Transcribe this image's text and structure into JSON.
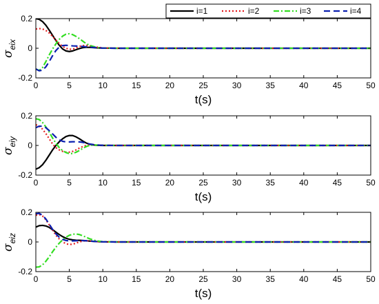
{
  "chart_data": [
    {
      "type": "line",
      "xlabel": "t(s)",
      "ylabel": {
        "symbol": "σ",
        "subscript": "eix"
      },
      "xlim": [
        0,
        50
      ],
      "ylim": [
        -0.2,
        0.2
      ],
      "xticks": [
        0,
        5,
        10,
        15,
        20,
        25,
        30,
        35,
        40,
        45,
        50
      ],
      "yticks": [
        -0.2,
        0,
        0.2
      ],
      "ytick_labels": [
        "-0.2",
        "0",
        "0.2"
      ],
      "grid": false,
      "legend_position": "top-right",
      "series": [
        {
          "name": "i=1",
          "x": [
            0,
            0.5,
            1,
            1.5,
            2,
            2.5,
            3,
            3.5,
            4,
            4.5,
            5,
            5.5,
            6,
            6.5,
            7,
            7.5,
            8,
            9,
            10,
            12,
            15,
            20,
            50
          ],
          "y": [
            0.2,
            0.195,
            0.18,
            0.155,
            0.122,
            0.087,
            0.052,
            0.02,
            -0.005,
            -0.018,
            -0.022,
            -0.018,
            -0.01,
            -0.002,
            0.004,
            0.006,
            0.006,
            0.003,
            0.001,
            0,
            0,
            0,
            0
          ]
        },
        {
          "name": "i=2",
          "x": [
            0,
            0.5,
            1,
            1.5,
            2,
            2.5,
            3,
            3.5,
            4,
            4.5,
            5,
            5.5,
            6,
            6.5,
            7,
            7.5,
            8,
            9,
            10,
            12,
            15,
            20,
            50
          ],
          "y": [
            0.13,
            0.133,
            0.13,
            0.12,
            0.103,
            0.08,
            0.055,
            0.032,
            0.012,
            0.0,
            -0.007,
            -0.006,
            0.002,
            0.012,
            0.018,
            0.02,
            0.017,
            0.008,
            0.002,
            0,
            0,
            0,
            0
          ]
        },
        {
          "name": "i=3",
          "x": [
            0,
            0.5,
            1,
            1.5,
            2,
            2.5,
            3,
            3.5,
            4,
            4.5,
            5,
            5.5,
            6,
            6.5,
            7,
            7.5,
            8,
            9,
            10,
            12,
            15,
            20,
            50
          ],
          "y": [
            -0.14,
            -0.15,
            -0.13,
            -0.09,
            -0.045,
            -0.005,
            0.03,
            0.06,
            0.082,
            0.095,
            0.098,
            0.092,
            0.08,
            0.065,
            0.048,
            0.032,
            0.02,
            0.006,
            0.001,
            0,
            0,
            0,
            0
          ]
        },
        {
          "name": "i=4",
          "x": [
            0,
            0.5,
            1,
            1.5,
            2,
            2.5,
            3,
            3.5,
            4,
            4.5,
            5,
            5.5,
            6,
            6.5,
            7,
            7.5,
            8,
            9,
            10,
            12,
            15,
            20,
            50
          ],
          "y": [
            -0.14,
            -0.152,
            -0.148,
            -0.125,
            -0.09,
            -0.05,
            -0.015,
            0.008,
            0.018,
            0.02,
            0.018,
            0.016,
            0.015,
            0.014,
            0.012,
            0.01,
            0.008,
            0.004,
            0.001,
            0,
            0,
            0,
            0
          ]
        }
      ]
    },
    {
      "type": "line",
      "xlabel": "t(s)",
      "ylabel": {
        "symbol": "σ",
        "subscript": "eiy"
      },
      "xlim": [
        0,
        50
      ],
      "ylim": [
        -0.2,
        0.2
      ],
      "xticks": [
        0,
        5,
        10,
        15,
        20,
        25,
        30,
        35,
        40,
        45,
        50
      ],
      "yticks": [
        -0.2,
        0,
        0.2
      ],
      "ytick_labels": [
        "-0.2",
        "0",
        "0.2"
      ],
      "grid": false,
      "series": [
        {
          "name": "i=1",
          "x": [
            0,
            0.5,
            1,
            1.5,
            2,
            2.5,
            3,
            3.5,
            4,
            4.5,
            5,
            5.5,
            6,
            6.5,
            7,
            7.5,
            8,
            9,
            10,
            12,
            15,
            20,
            50
          ],
          "y": [
            -0.16,
            -0.15,
            -0.13,
            -0.1,
            -0.065,
            -0.03,
            0.0,
            0.025,
            0.045,
            0.06,
            0.067,
            0.067,
            0.058,
            0.045,
            0.03,
            0.017,
            0.008,
            0.001,
            0,
            0,
            0,
            0,
            0
          ]
        },
        {
          "name": "i=2",
          "x": [
            0,
            0.5,
            1,
            1.5,
            2,
            2.5,
            3,
            3.5,
            4,
            4.5,
            5,
            5.5,
            6,
            6.5,
            7,
            7.5,
            8,
            9,
            10,
            12,
            15,
            20,
            50
          ],
          "y": [
            0.14,
            0.13,
            0.11,
            0.08,
            0.045,
            0.01,
            -0.015,
            -0.03,
            -0.04,
            -0.045,
            -0.045,
            -0.04,
            -0.03,
            -0.018,
            -0.008,
            0.0,
            0.004,
            0.003,
            0.001,
            0,
            0,
            0,
            0
          ]
        },
        {
          "name": "i=3",
          "x": [
            0,
            0.5,
            1,
            1.5,
            2,
            2.5,
            3,
            3.5,
            4,
            4.5,
            5,
            5.5,
            6,
            6.5,
            7,
            7.5,
            8,
            9,
            10,
            12,
            15,
            20,
            50
          ],
          "y": [
            0.18,
            0.175,
            0.155,
            0.125,
            0.09,
            0.05,
            0.015,
            -0.015,
            -0.035,
            -0.048,
            -0.055,
            -0.054,
            -0.046,
            -0.034,
            -0.02,
            -0.008,
            0.0,
            0.003,
            0.001,
            0,
            0,
            0,
            0
          ]
        },
        {
          "name": "i=4",
          "x": [
            0,
            0.5,
            1,
            1.5,
            2,
            2.5,
            3,
            3.5,
            4,
            4.5,
            5,
            5.5,
            6,
            6.5,
            7,
            7.5,
            8,
            9,
            10,
            12,
            15,
            20,
            50
          ],
          "y": [
            0.12,
            0.13,
            0.13,
            0.12,
            0.1,
            0.078,
            0.055,
            0.038,
            0.028,
            0.024,
            0.024,
            0.025,
            0.025,
            0.024,
            0.021,
            0.016,
            0.01,
            0.003,
            0.001,
            0,
            0,
            0,
            0
          ]
        }
      ]
    },
    {
      "type": "line",
      "xlabel": "t(s)",
      "ylabel": {
        "symbol": "σ",
        "subscript": "eiz"
      },
      "xlim": [
        0,
        50
      ],
      "ylim": [
        -0.2,
        0.2
      ],
      "xticks": [
        0,
        5,
        10,
        15,
        20,
        25,
        30,
        35,
        40,
        45,
        50
      ],
      "yticks": [
        -0.2,
        0,
        0.2
      ],
      "ytick_labels": [
        "-0.2",
        "0",
        "0.2"
      ],
      "grid": false,
      "series": [
        {
          "name": "i=1",
          "x": [
            0,
            0.5,
            1,
            1.5,
            2,
            2.5,
            3,
            3.5,
            4,
            4.5,
            5,
            5.5,
            6,
            6.5,
            7,
            7.5,
            8,
            9,
            10,
            12,
            15,
            20,
            50
          ],
          "y": [
            0.1,
            0.11,
            0.112,
            0.108,
            0.098,
            0.083,
            0.066,
            0.05,
            0.036,
            0.025,
            0.018,
            0.014,
            0.012,
            0.011,
            0.01,
            0.008,
            0.006,
            0.003,
            0.001,
            0,
            0,
            0,
            0
          ]
        },
        {
          "name": "i=2",
          "x": [
            0,
            0.5,
            1,
            1.5,
            2,
            2.5,
            3,
            3.5,
            4,
            4.5,
            5,
            5.5,
            6,
            6.5,
            7,
            7.5,
            8,
            9,
            10,
            12,
            15,
            20,
            50
          ],
          "y": [
            0.18,
            0.185,
            0.175,
            0.15,
            0.115,
            0.08,
            0.045,
            0.02,
            0.0,
            -0.012,
            -0.017,
            -0.015,
            -0.008,
            0.0,
            0.006,
            0.008,
            0.007,
            0.003,
            0.001,
            0,
            0,
            0,
            0
          ]
        },
        {
          "name": "i=3",
          "x": [
            0,
            0.5,
            1,
            1.5,
            2,
            2.5,
            3,
            3.5,
            4,
            4.5,
            5,
            5.5,
            6,
            6.5,
            7,
            7.5,
            8,
            9,
            10,
            12,
            15,
            20,
            50
          ],
          "y": [
            -0.17,
            -0.168,
            -0.155,
            -0.13,
            -0.1,
            -0.066,
            -0.035,
            -0.008,
            0.015,
            0.032,
            0.045,
            0.052,
            0.054,
            0.05,
            0.042,
            0.032,
            0.022,
            0.008,
            0.002,
            0,
            0,
            0,
            0
          ]
        },
        {
          "name": "i=4",
          "x": [
            0,
            0.5,
            1,
            1.5,
            2,
            2.5,
            3,
            3.5,
            4,
            4.5,
            5,
            5.5,
            6,
            6.5,
            7,
            7.5,
            8,
            9,
            10,
            12,
            15,
            20,
            50
          ],
          "y": [
            0.19,
            0.193,
            0.18,
            0.155,
            0.12,
            0.085,
            0.055,
            0.032,
            0.017,
            0.01,
            0.007,
            0.007,
            0.008,
            0.009,
            0.009,
            0.008,
            0.006,
            0.003,
            0.001,
            0,
            0,
            0,
            0
          ]
        }
      ]
    }
  ],
  "legend": {
    "entries": [
      {
        "label": "i=1",
        "color": "#000000",
        "dash": "solid"
      },
      {
        "label": "i=2",
        "color": "#e41a1c",
        "dash": "dotted"
      },
      {
        "label": "i=3",
        "color": "#33dd22",
        "dash": "dashdot"
      },
      {
        "label": "i=4",
        "color": "#0b1fb0",
        "dash": "dashed"
      }
    ]
  }
}
